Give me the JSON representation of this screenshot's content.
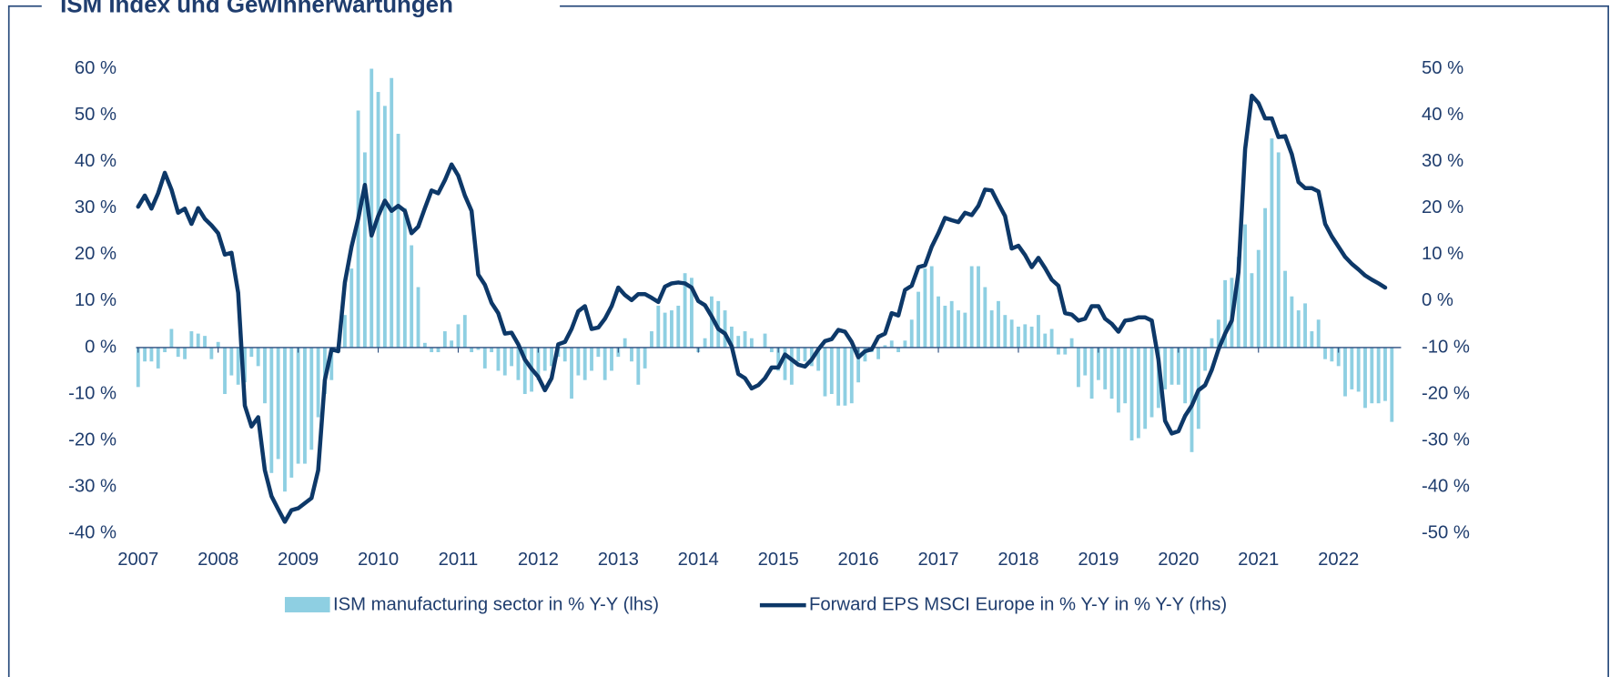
{
  "chart_data": {
    "type": "bar_line",
    "title": "ISM Index und Gewinnerwartungen",
    "categories": [
      "2007",
      null,
      null,
      null,
      null,
      null,
      null,
      null,
      null,
      null,
      null,
      null,
      "2008",
      null,
      null,
      null,
      null,
      null,
      null,
      null,
      null,
      null,
      null,
      null,
      "2009",
      null,
      null,
      null,
      null,
      null,
      null,
      null,
      null,
      null,
      null,
      null,
      "2010",
      null,
      null,
      null,
      null,
      null,
      null,
      null,
      null,
      null,
      null,
      null,
      "2011",
      null,
      null,
      null,
      null,
      null,
      null,
      null,
      null,
      null,
      null,
      null,
      "2012",
      null,
      null,
      null,
      null,
      null,
      null,
      null,
      null,
      null,
      null,
      null,
      "2013",
      null,
      null,
      null,
      null,
      null,
      null,
      null,
      null,
      null,
      null,
      null,
      "2014",
      null,
      null,
      null,
      null,
      null,
      null,
      null,
      null,
      null,
      null,
      null,
      "2015",
      null,
      null,
      null,
      null,
      null,
      null,
      null,
      null,
      null,
      null,
      null,
      "2016",
      null,
      null,
      null,
      null,
      null,
      null,
      null,
      null,
      null,
      null,
      null,
      "2017",
      null,
      null,
      null,
      null,
      null,
      null,
      null,
      null,
      null,
      null,
      null,
      "2018",
      null,
      null,
      null,
      null,
      null,
      null,
      null,
      null,
      null,
      null,
      null,
      "2019",
      null,
      null,
      null,
      null,
      null,
      null,
      null,
      null,
      null,
      null,
      null,
      "2020",
      null,
      null,
      null,
      null,
      null,
      null,
      null,
      null,
      null,
      null,
      null,
      "2021",
      null,
      null,
      null,
      null,
      null,
      null,
      null,
      null,
      null,
      null,
      null,
      "2022",
      null,
      null,
      null,
      null,
      null,
      null,
      null,
      null
    ],
    "series": [
      {
        "name": "ISM manufacturing sector in % Y-Y (lhs)",
        "type": "bar",
        "color": "#8ecfe2",
        "values": [
          -8.5,
          -3,
          -3,
          -4.5,
          -1,
          4,
          -2,
          -2.5,
          3.5,
          3,
          2.5,
          -2.5,
          1.2,
          -10,
          -6,
          -8,
          -7.5,
          -2,
          -4,
          -12,
          -27,
          -24,
          -31,
          -28,
          -25,
          -25,
          -22,
          -15,
          -10,
          -7,
          0,
          7,
          17,
          51,
          42,
          60,
          55,
          52,
          58,
          46,
          30,
          22,
          13,
          1,
          -1,
          -1,
          3.5,
          1.5,
          5,
          7,
          -1,
          -0.5,
          -4.5,
          -1,
          -5,
          -6,
          -4,
          -7,
          -10,
          -9.5,
          -7,
          -5,
          -4,
          -2,
          -3,
          -11,
          -6,
          -7,
          -5,
          -2,
          -7,
          -5,
          -2,
          2,
          -3,
          -8,
          -4.5,
          3.5,
          9,
          7.5,
          8,
          9,
          16,
          15,
          -1,
          2,
          11,
          10,
          8,
          4.5,
          2.5,
          3.5,
          2,
          0,
          3,
          -1,
          -5,
          -7,
          -8,
          -3,
          -3,
          -4,
          -5,
          -10.5,
          -10,
          -12.5,
          -12.5,
          -12,
          -7.5,
          -3,
          -1,
          -2.5,
          0.5,
          1.5,
          -1,
          1.5,
          6,
          12,
          17,
          17.5,
          11,
          9,
          10,
          8,
          7.5,
          17.5,
          17.5,
          13,
          8,
          10,
          7,
          6,
          4.5,
          5,
          4.5,
          7,
          3,
          4,
          -1.5,
          -1.5,
          2,
          -8.5,
          -6,
          -11,
          -7,
          -9,
          -11,
          -14,
          -12,
          -20,
          -19.5,
          -17.5,
          -15,
          -13,
          -9,
          -8,
          -8,
          -12,
          -22.5,
          -17.5,
          -5,
          2,
          6,
          14.5,
          15,
          19.5,
          26.5,
          16,
          21,
          30,
          45,
          42,
          16.5,
          11,
          8,
          9.5,
          3.5,
          6,
          -2.5,
          -3,
          -4,
          -10.5,
          -9,
          -9.5,
          -13,
          -12,
          -12,
          -11.5,
          -16
        ]
      },
      {
        "name": "Forward EPS MSCI Europe in % Y-Y in % Y-Y (rhs)",
        "type": "line",
        "axis": "y2",
        "color": "#0d3868",
        "values": [
          20.3,
          22.7,
          19.9,
          23.2,
          27.6,
          24,
          19,
          19.9,
          16.6,
          20,
          17.7,
          16.3,
          14.6,
          10,
          10.4,
          1.8,
          -22.5,
          -27,
          -25,
          -36.4,
          -42,
          -44.8,
          -47.5,
          -45,
          -44.6,
          -43.5,
          -42.4,
          -36.4,
          -17,
          -10.4,
          -10.8,
          4,
          11.7,
          17.7,
          25,
          14.1,
          18.3,
          21.6,
          19.4,
          20.5,
          19.4,
          14.6,
          16,
          20,
          23.8,
          23.2,
          26,
          29.4,
          27,
          22.7,
          19.4,
          5.7,
          3.5,
          -0.4,
          -2.6,
          -7,
          -6.8,
          -9.3,
          -12.6,
          -14.6,
          -16.3,
          -19.2,
          -16.6,
          -9.3,
          -8.8,
          -6,
          -2.2,
          -1.1,
          -6,
          -5.7,
          -3.8,
          -1.1,
          2.9,
          1.3,
          0.2,
          1.5,
          1.5,
          0.7,
          -0.2,
          3.1,
          3.8,
          4,
          3.8,
          2.9,
          0,
          -0.9,
          -3.3,
          -6,
          -7,
          -9.7,
          -15.7,
          -16.6,
          -18.8,
          -18.1,
          -16.6,
          -14.3,
          -14.3,
          -11.5,
          -12.6,
          -13.7,
          -14.1,
          -12.6,
          -10.4,
          -8.6,
          -8.2,
          -6.2,
          -6.6,
          -8.8,
          -12.1,
          -10.8,
          -10.4,
          -7.7,
          -7,
          -2.6,
          -3.1,
          2.4,
          3.3,
          7.3,
          7.7,
          11.7,
          14.6,
          17.9,
          17.4,
          17,
          19,
          18.5,
          20.5,
          24,
          23.8,
          21,
          18.3,
          11.3,
          11.9,
          9.9,
          7.3,
          9.3,
          7.1,
          4.6,
          3.3,
          -2.6,
          -2.9,
          -4.2,
          -3.8,
          -1.1,
          -1.1,
          -3.8,
          -4.9,
          -6.6,
          -4.2,
          -4,
          -3.5,
          -3.5,
          -4.2,
          -12.6,
          -25.8,
          -28.5,
          -28,
          -24.7,
          -22.5,
          -19.2,
          -18.1,
          -14.8,
          -10.4,
          -7,
          -4.2,
          6.2,
          32.7,
          44.2,
          42.6,
          39.3,
          39.3,
          35.3,
          35.5,
          31.6,
          25.6,
          24.3,
          24.3,
          23.6,
          16.6,
          13.9,
          11.7,
          9.5,
          8,
          6.8,
          5.5,
          4.6,
          3.8,
          2.9,
          null
        ]
      }
    ],
    "ylim": [
      -40,
      60
    ],
    "yticks": [
      {
        "value": -40,
        "label": "-40 %"
      },
      {
        "value": -30,
        "label": "-30 %"
      },
      {
        "value": -20,
        "label": "-20 %"
      },
      {
        "value": -10,
        "label": "-10 %"
      },
      {
        "value": 0,
        "label": "0 %"
      },
      {
        "value": 10,
        "label": "10 %"
      },
      {
        "value": 20,
        "label": "20 %"
      },
      {
        "value": 30,
        "label": "30 %"
      },
      {
        "value": 40,
        "label": "40 %"
      },
      {
        "value": 50,
        "label": "50 %"
      },
      {
        "value": 60,
        "label": "60 %"
      }
    ],
    "y2lim": [
      -50,
      50
    ],
    "y2ticks": [
      {
        "value": -50,
        "label": "-50 %"
      },
      {
        "value": -40,
        "label": "-40 %"
      },
      {
        "value": -30,
        "label": "-30 %"
      },
      {
        "value": -20,
        "label": "-20 %"
      },
      {
        "value": -10,
        "label": "-10 %"
      },
      {
        "value": 0,
        "label": "0 %"
      },
      {
        "value": 10,
        "label": "10 %"
      },
      {
        "value": 20,
        "label": "20 %"
      },
      {
        "value": 30,
        "label": "30 %"
      },
      {
        "value": 40,
        "label": "40 %"
      },
      {
        "value": 50,
        "label": "50 %"
      }
    ],
    "legend": "bottom"
  }
}
